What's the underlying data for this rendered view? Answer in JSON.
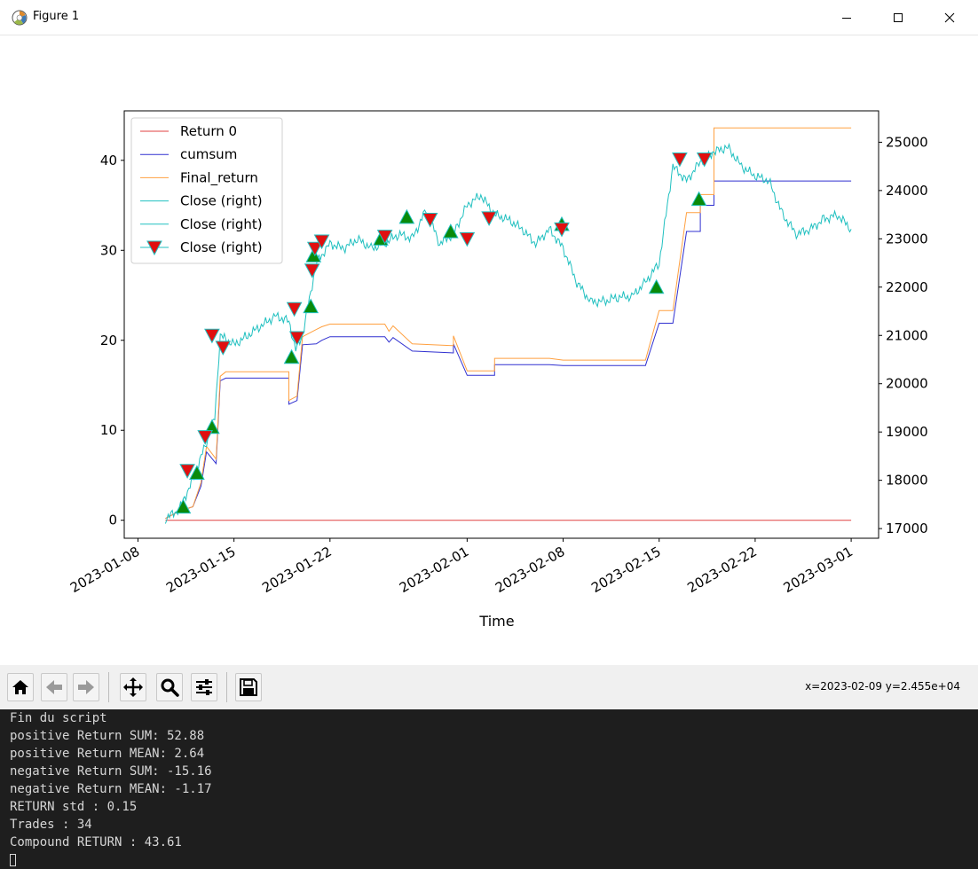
{
  "window": {
    "title": "Figure 1",
    "controls": [
      "minimize",
      "maximize",
      "close"
    ]
  },
  "chart_data": {
    "type": "line",
    "xlabel": "Time",
    "x_ticks": [
      "2023-01-08",
      "2023-01-15",
      "2023-01-22",
      "2023-02-01",
      "2023-02-08",
      "2023-02-15",
      "2023-02-22",
      "2023-03-01"
    ],
    "y_left_ticks": [
      "0",
      "10",
      "20",
      "30",
      "40"
    ],
    "y_left_lim": [
      -2,
      45.5
    ],
    "y_right_ticks": [
      "17000",
      "18000",
      "19000",
      "20000",
      "21000",
      "22000",
      "23000",
      "24000",
      "25000"
    ],
    "y_right_lim": [
      16800,
      25650
    ],
    "x_range": [
      "2023-01-07",
      "2023-03-03"
    ],
    "grid": false,
    "legend_position": "upper left",
    "legend": [
      {
        "label": "Return 0",
        "color": "#e04040",
        "marker": "none"
      },
      {
        "label": "cumsum",
        "color": "#3030d0",
        "marker": "none"
      },
      {
        "label": "Final_return",
        "color": "#ffa040",
        "marker": "none"
      },
      {
        "label": "Close (right)",
        "color": "#20c0c0",
        "marker": "none"
      },
      {
        "label": "Close (right)",
        "color": "#20c0c0",
        "marker": "none"
      },
      {
        "label": "Close (right)",
        "color": "#20c0c0",
        "marker": "triangle-down-red"
      }
    ],
    "series": [
      {
        "name": "Return 0",
        "axis": "left",
        "color": "#e04040",
        "points": [
          [
            "2023-01-10",
            0
          ],
          [
            "2023-03-01",
            0
          ]
        ]
      },
      {
        "name": "cumsum",
        "axis": "left",
        "color": "#3030d0",
        "points": [
          [
            "2023-01-10",
            0.2
          ],
          [
            "2023-01-11",
            1.0
          ],
          [
            "2023-01-12",
            1.5
          ],
          [
            "2023-01-12.6",
            3.8
          ],
          [
            "2023-01-13",
            7.6
          ],
          [
            "2023-01-13.7",
            6.3
          ],
          [
            "2023-01-14",
            15.5
          ],
          [
            "2023-01-14.4",
            15.8
          ],
          [
            "2023-01-19",
            15.8
          ],
          [
            "2023-01-19",
            12.9
          ],
          [
            "2023-01-19.6",
            13.3
          ],
          [
            "2023-01-20",
            19.5
          ],
          [
            "2023-01-21",
            19.6
          ],
          [
            "2023-01-21.4",
            20.0
          ],
          [
            "2023-01-22",
            20.4
          ],
          [
            "2023-01-26",
            20.4
          ],
          [
            "2023-01-26.3",
            19.8
          ],
          [
            "2023-01-26.6",
            20.3
          ],
          [
            "2023-01-28",
            18.8
          ],
          [
            "2023-01-31",
            18.6
          ],
          [
            "2023-01-31",
            19.6
          ],
          [
            "2023-02-01",
            16.1
          ],
          [
            "2023-02-03",
            16.1
          ],
          [
            "2023-02-03",
            17.3
          ],
          [
            "2023-02-07",
            17.3
          ],
          [
            "2023-02-08",
            17.2
          ],
          [
            "2023-02-14",
            17.2
          ],
          [
            "2023-02-15",
            21.9
          ],
          [
            "2023-02-16",
            21.9
          ],
          [
            "2023-02-17",
            32.1
          ],
          [
            "2023-02-18",
            32.1
          ],
          [
            "2023-02-18",
            35.0
          ],
          [
            "2023-02-19",
            35.0
          ],
          [
            "2023-02-19",
            37.7
          ],
          [
            "2023-03-01",
            37.7
          ]
        ]
      },
      {
        "name": "Final_return",
        "axis": "left",
        "color": "#ffa040",
        "points": [
          [
            "2023-01-10",
            0.2
          ],
          [
            "2023-01-11",
            1.0
          ],
          [
            "2023-01-12",
            1.5
          ],
          [
            "2023-01-12.6",
            4.2
          ],
          [
            "2023-01-13",
            8.2
          ],
          [
            "2023-01-13.7",
            6.8
          ],
          [
            "2023-01-14",
            16.0
          ],
          [
            "2023-01-14.4",
            16.5
          ],
          [
            "2023-01-19",
            16.5
          ],
          [
            "2023-01-19",
            13.3
          ],
          [
            "2023-01-19.6",
            13.8
          ],
          [
            "2023-01-20",
            20.4
          ],
          [
            "2023-01-21",
            21.2
          ],
          [
            "2023-01-21.4",
            21.5
          ],
          [
            "2023-01-22",
            21.8
          ],
          [
            "2023-01-26",
            21.8
          ],
          [
            "2023-01-26.3",
            21.0
          ],
          [
            "2023-01-26.6",
            21.6
          ],
          [
            "2023-01-28",
            19.6
          ],
          [
            "2023-01-31",
            19.4
          ],
          [
            "2023-01-31",
            20.5
          ],
          [
            "2023-02-01",
            16.6
          ],
          [
            "2023-02-03",
            16.6
          ],
          [
            "2023-02-03",
            18.0
          ],
          [
            "2023-02-07",
            18.0
          ],
          [
            "2023-02-08",
            17.8
          ],
          [
            "2023-02-14",
            17.8
          ],
          [
            "2023-02-15",
            23.3
          ],
          [
            "2023-02-16",
            23.3
          ],
          [
            "2023-02-17",
            34.2
          ],
          [
            "2023-02-18",
            34.2
          ],
          [
            "2023-02-18",
            36.2
          ],
          [
            "2023-02-19",
            36.2
          ],
          [
            "2023-02-19",
            43.6
          ],
          [
            "2023-03-01",
            43.6
          ]
        ]
      },
      {
        "name": "Close (right)",
        "axis": "right",
        "color": "#20c0c0",
        "points": [
          [
            "2023-01-10",
            17200
          ],
          [
            "2023-01-11",
            17400
          ],
          [
            "2023-01-12",
            18000
          ],
          [
            "2023-01-13",
            18800
          ],
          [
            "2023-01-13.6",
            19300
          ],
          [
            "2023-01-14",
            21000
          ],
          [
            "2023-01-15",
            20800
          ],
          [
            "2023-01-16",
            21000
          ],
          [
            "2023-01-17",
            21200
          ],
          [
            "2023-01-18",
            21400
          ],
          [
            "2023-01-19",
            21300
          ],
          [
            "2023-01-19.5",
            20700
          ],
          [
            "2023-01-20",
            21000
          ],
          [
            "2023-01-21",
            22500
          ],
          [
            "2023-01-22",
            22900
          ],
          [
            "2023-01-23",
            22800
          ],
          [
            "2023-01-24",
            23000
          ],
          [
            "2023-01-25",
            22800
          ],
          [
            "2023-01-26",
            22900
          ],
          [
            "2023-01-27",
            23100
          ],
          [
            "2023-01-28",
            23000
          ],
          [
            "2023-01-29",
            23600
          ],
          [
            "2023-01-30",
            22900
          ],
          [
            "2023-01-31",
            23100
          ],
          [
            "2023-02-01",
            23700
          ],
          [
            "2023-02-02",
            23900
          ],
          [
            "2023-02-03",
            23500
          ],
          [
            "2023-02-04",
            23400
          ],
          [
            "2023-02-05",
            23200
          ],
          [
            "2023-02-06",
            22900
          ],
          [
            "2023-02-07",
            23200
          ],
          [
            "2023-02-08",
            22800
          ],
          [
            "2023-02-09",
            22100
          ],
          [
            "2023-02-10",
            21700
          ],
          [
            "2023-02-11",
            21700
          ],
          [
            "2023-02-12",
            21800
          ],
          [
            "2023-02-13",
            21800
          ],
          [
            "2023-02-14",
            22100
          ],
          [
            "2023-02-15",
            22500
          ],
          [
            "2023-02-16",
            24500
          ],
          [
            "2023-02-17",
            24200
          ],
          [
            "2023-02-18",
            24600
          ],
          [
            "2023-02-19",
            24800
          ],
          [
            "2023-02-20",
            24900
          ],
          [
            "2023-02-21",
            24500
          ],
          [
            "2023-02-22",
            24300
          ],
          [
            "2023-02-23",
            24200
          ],
          [
            "2023-02-24",
            23500
          ],
          [
            "2023-02-25",
            23100
          ],
          [
            "2023-02-26",
            23200
          ],
          [
            "2023-02-27",
            23400
          ],
          [
            "2023-02-28",
            23500
          ],
          [
            "2023-03-01",
            23200
          ]
        ]
      }
    ],
    "buy_markers": [
      [
        "2023-01-11.3",
        17450
      ],
      [
        "2023-01-12.3",
        18150
      ],
      [
        "2023-01-13.4",
        19100
      ],
      [
        "2023-01-19.2",
        20550
      ],
      [
        "2023-01-20.6",
        21600
      ],
      [
        "2023-01-20.8",
        22650
      ],
      [
        "2023-01-25.7",
        23000
      ],
      [
        "2023-01-27.6",
        23450
      ],
      [
        "2023-01-30.8",
        23150
      ],
      [
        "2023-02-07.9",
        23300
      ],
      [
        "2023-02-14.8",
        22000
      ],
      [
        "2023-02-17.9",
        23820
      ]
    ],
    "sell_markers": [
      [
        "2023-01-11.6",
        18200
      ],
      [
        "2023-01-12.9",
        18900
      ],
      [
        "2023-01-13.4",
        21000
      ],
      [
        "2023-01-14.2",
        20750
      ],
      [
        "2023-01-19.4",
        21550
      ],
      [
        "2023-01-19.6",
        20950
      ],
      [
        "2023-01-20.7",
        22350
      ],
      [
        "2023-01-20.9",
        22800
      ],
      [
        "2023-01-21.4",
        22950
      ],
      [
        "2023-01-26.0",
        23050
      ],
      [
        "2023-01-29.3",
        23400
      ],
      [
        "2023-02-01.0",
        23000
      ],
      [
        "2023-02-02.6",
        23430
      ],
      [
        "2023-02-07.9",
        23200
      ],
      [
        "2023-02-16.5",
        24650
      ],
      [
        "2023-02-18.3",
        24650
      ]
    ]
  },
  "toolbar": {
    "buttons": [
      "home",
      "back",
      "forward",
      "pan",
      "zoom",
      "configure",
      "save"
    ],
    "coords": "x=2023-02-09 y=2.455e+04"
  },
  "console": {
    "lines": [
      "Fin du script",
      "positive Return SUM: 52.88",
      "positive Return MEAN: 2.64",
      "negative Return SUM: -15.16",
      "negative Return MEAN: -1.17",
      "RETURN std : 0.15",
      "Trades : 34",
      "Compound RETURN : 43.61"
    ]
  }
}
